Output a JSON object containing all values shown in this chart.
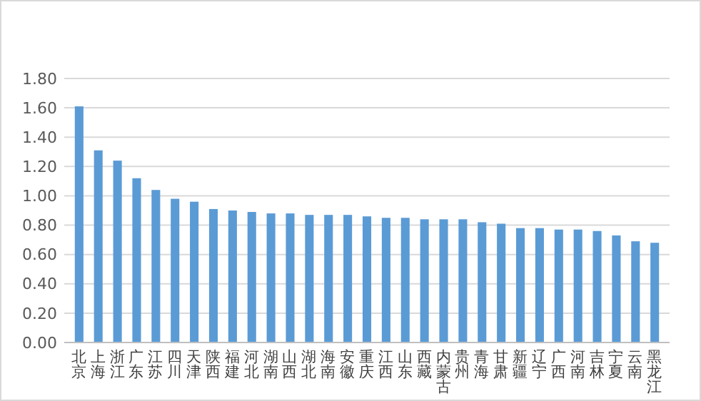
{
  "chart_data": {
    "type": "bar",
    "categories": [
      "北京",
      "上海",
      "浙江",
      "广东",
      "江苏",
      "四川",
      "天津",
      "陕西",
      "福建",
      "河北",
      "湖南",
      "山西",
      "湖北",
      "海南",
      "安徽",
      "重庆",
      "江西",
      "山东",
      "西藏",
      "内蒙古",
      "贵州",
      "青海",
      "甘肃",
      "新疆",
      "辽宁",
      "广西",
      "河南",
      "吉林",
      "宁夏",
      "云南",
      "黑龙江"
    ],
    "values": [
      1.61,
      1.31,
      1.24,
      1.12,
      1.04,
      0.98,
      0.96,
      0.91,
      0.9,
      0.89,
      0.88,
      0.88,
      0.87,
      0.87,
      0.87,
      0.86,
      0.85,
      0.85,
      0.84,
      0.84,
      0.84,
      0.82,
      0.81,
      0.78,
      0.78,
      0.77,
      0.77,
      0.76,
      0.73,
      0.69,
      0.68
    ],
    "color": "#5b9bd5",
    "ylim": [
      0,
      1.8
    ],
    "yticks": [
      {
        "value": 0,
        "label": "0.00"
      },
      {
        "value": 0.2,
        "label": "0.20"
      },
      {
        "value": 0.4,
        "label": "0.40"
      },
      {
        "value": 0.6,
        "label": "0.60"
      },
      {
        "value": 0.8,
        "label": "0.80"
      },
      {
        "value": 1,
        "label": "1.00"
      },
      {
        "value": 1.2,
        "label": "1.20"
      },
      {
        "value": 1.4,
        "label": "1.40"
      },
      {
        "value": 1.6,
        "label": "1.60"
      },
      {
        "value": 1.8,
        "label": "1.80"
      }
    ],
    "grid": "y"
  }
}
